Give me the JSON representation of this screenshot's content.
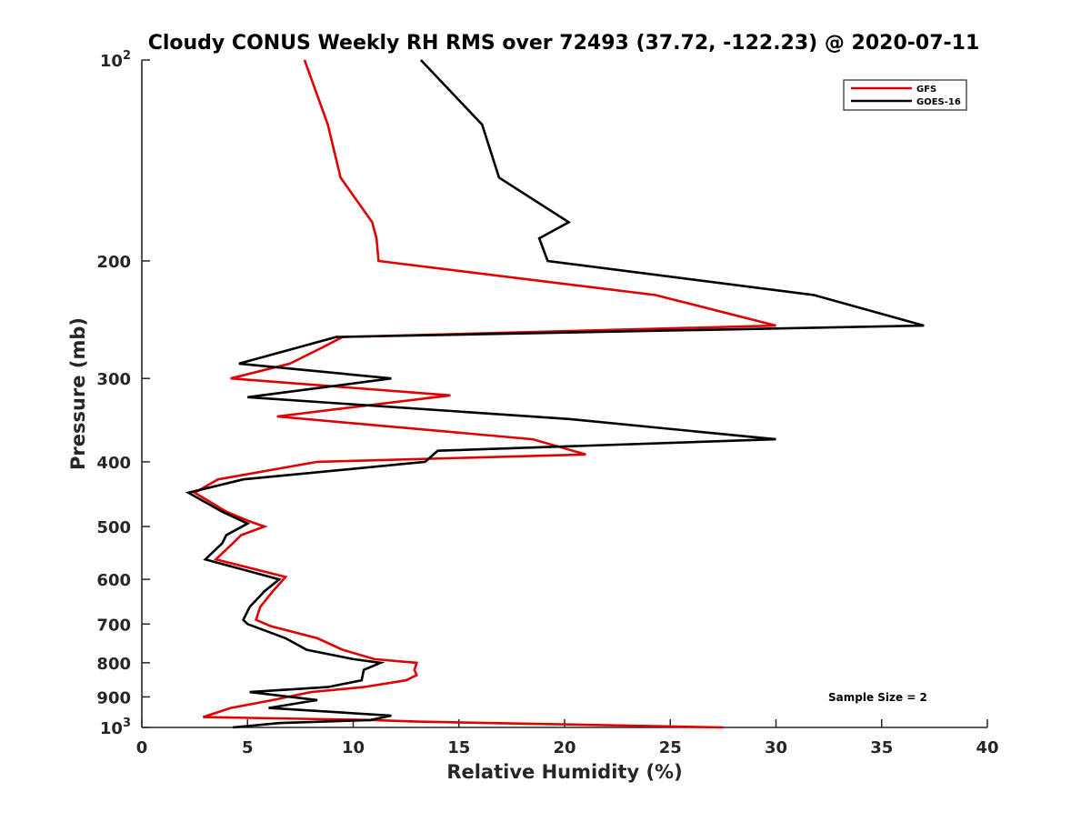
{
  "chart_data": {
    "type": "line",
    "title": "Cloudy CONUS Weekly RH RMS over 72493 (37.72, -122.23) @ 2020-07-11",
    "xlabel": "Relative Humidity (%)",
    "ylabel": "Pressure (mb)",
    "xlim": [
      0,
      40
    ],
    "ylim": [
      100,
      1000
    ],
    "yscale": "log",
    "y_reversed": true,
    "x_ticks": [
      "0",
      "5",
      "10",
      "15",
      "20",
      "25",
      "30",
      "35",
      "40"
    ],
    "y_ticks": [
      {
        "value": 100,
        "base": "10",
        "exp": "2"
      },
      {
        "value": 200,
        "label": "200"
      },
      {
        "value": 300,
        "label": "300"
      },
      {
        "value": 400,
        "label": "400"
      },
      {
        "value": 500,
        "label": "500"
      },
      {
        "value": 600,
        "label": "600"
      },
      {
        "value": 700,
        "label": "700"
      },
      {
        "value": 800,
        "label": "800"
      },
      {
        "value": 900,
        "label": "900"
      },
      {
        "value": 1000,
        "base": "10",
        "exp": "3"
      }
    ],
    "grid": false,
    "legend_position": "top-right",
    "annotation": "Sample Size = 2",
    "series": [
      {
        "name": "GFS",
        "color": "#e00000",
        "points": [
          [
            7.7,
            100
          ],
          [
            8.8,
            125
          ],
          [
            9.4,
            150
          ],
          [
            10.9,
            175
          ],
          [
            11.1,
            185
          ],
          [
            11.2,
            200
          ],
          [
            24.3,
            225
          ],
          [
            30.0,
            250
          ],
          [
            9.5,
            260
          ],
          [
            8.5,
            270
          ],
          [
            7.0,
            285
          ],
          [
            4.2,
            300
          ],
          [
            14.6,
            318
          ],
          [
            6.4,
            342
          ],
          [
            18.5,
            370
          ],
          [
            21.0,
            390
          ],
          [
            8.3,
            400
          ],
          [
            3.6,
            425
          ],
          [
            2.5,
            445
          ],
          [
            4.0,
            475
          ],
          [
            5.0,
            490
          ],
          [
            5.8,
            500
          ],
          [
            4.7,
            515
          ],
          [
            4.3,
            530
          ],
          [
            3.5,
            560
          ],
          [
            6.8,
            595
          ],
          [
            6.2,
            625
          ],
          [
            5.6,
            660
          ],
          [
            5.4,
            690
          ],
          [
            6.1,
            705
          ],
          [
            8.3,
            735
          ],
          [
            9.5,
            765
          ],
          [
            11.0,
            790
          ],
          [
            13.0,
            800
          ],
          [
            12.9,
            820
          ],
          [
            13.0,
            835
          ],
          [
            12.5,
            850
          ],
          [
            10.5,
            870
          ],
          [
            8.0,
            885
          ],
          [
            6.2,
            910
          ],
          [
            4.2,
            935
          ],
          [
            2.9,
            965
          ],
          [
            11.0,
            975
          ],
          [
            13.0,
            980
          ],
          [
            27.5,
            1000
          ]
        ]
      },
      {
        "name": "GOES-16",
        "color": "#000000",
        "points": [
          [
            13.2,
            100
          ],
          [
            16.1,
            125
          ],
          [
            16.9,
            150
          ],
          [
            20.2,
            175
          ],
          [
            18.8,
            185
          ],
          [
            19.2,
            200
          ],
          [
            31.8,
            225
          ],
          [
            37.0,
            250
          ],
          [
            9.2,
            260
          ],
          [
            4.6,
            285
          ],
          [
            11.8,
            300
          ],
          [
            5.0,
            320
          ],
          [
            20.2,
            345
          ],
          [
            30.0,
            370
          ],
          [
            14.0,
            385
          ],
          [
            13.4,
            400
          ],
          [
            4.8,
            425
          ],
          [
            2.2,
            445
          ],
          [
            3.8,
            475
          ],
          [
            5.0,
            495
          ],
          [
            4.0,
            515
          ],
          [
            3.8,
            530
          ],
          [
            3.0,
            560
          ],
          [
            6.5,
            600
          ],
          [
            5.8,
            625
          ],
          [
            5.1,
            660
          ],
          [
            4.8,
            690
          ],
          [
            5.0,
            700
          ],
          [
            6.8,
            735
          ],
          [
            7.8,
            765
          ],
          [
            10.0,
            790
          ],
          [
            11.3,
            800
          ],
          [
            10.5,
            820
          ],
          [
            10.4,
            850
          ],
          [
            8.8,
            870
          ],
          [
            5.1,
            885
          ],
          [
            8.3,
            910
          ],
          [
            6.0,
            935
          ],
          [
            11.8,
            960
          ],
          [
            10.8,
            975
          ],
          [
            6.5,
            985
          ],
          [
            4.3,
            1000
          ]
        ]
      }
    ]
  }
}
